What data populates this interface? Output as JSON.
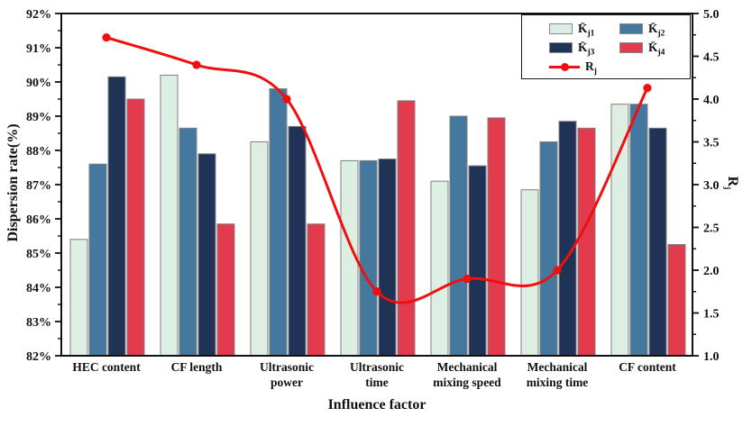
{
  "chart_data": {
    "type": "bar+line",
    "title": "",
    "categories": [
      "HEC content",
      "CF length",
      "Ultrasonic power",
      "Ultrasonic time",
      "Mechanical mixing speed",
      "Mechanical mixing time",
      "CF content"
    ],
    "categories_display": [
      [
        "HEC content"
      ],
      [
        "CF length"
      ],
      [
        "Ultrasonic",
        "power"
      ],
      [
        "Ultrasonic",
        "time"
      ],
      [
        "Mechanical",
        "mixing speed"
      ],
      [
        "Mechanical",
        "mixing time"
      ],
      [
        "CF content"
      ]
    ],
    "bar_series": [
      {
        "name": "K̄j1",
        "color": "#DDEFE3",
        "values": [
          85.4,
          90.2,
          88.25,
          87.7,
          87.1,
          86.85,
          89.35
        ]
      },
      {
        "name": "K̄j2",
        "color": "#45789E",
        "values": [
          87.6,
          88.65,
          89.8,
          87.7,
          89.0,
          88.25,
          89.35
        ]
      },
      {
        "name": "K̄j3",
        "color": "#1E3355",
        "values": [
          90.15,
          87.9,
          88.7,
          87.75,
          87.55,
          88.85,
          88.65
        ]
      },
      {
        "name": "K̄j4",
        "color": "#E23B4E",
        "values": [
          89.5,
          85.85,
          85.85,
          89.45,
          88.95,
          88.65,
          85.25
        ]
      }
    ],
    "line_series": {
      "name": "Rj",
      "color": "#F10E0E",
      "values": [
        4.72,
        4.4,
        4.0,
        1.75,
        1.9,
        2.0,
        4.13
      ]
    },
    "left_axis": {
      "label": "Dispersion rate(%)",
      "min": 82,
      "max": 92,
      "major_step": 1,
      "minor_step": 0.5,
      "tick_labels": [
        "92%",
        "91%",
        "90%",
        "89%",
        "88%",
        "87%",
        "86%",
        "85%",
        "84%",
        "83%",
        "82%"
      ]
    },
    "right_axis": {
      "label_base": "R",
      "label_sub": "j",
      "min": 1.0,
      "max": 5.0,
      "major_step": 0.5,
      "minor_step": 0.25,
      "tick_labels": [
        "5.0",
        "4.5",
        "4.0",
        "3.5",
        "3.0",
        "2.5",
        "2.0",
        "1.5",
        "1.0"
      ]
    },
    "x_axis": {
      "label": "Influence factor"
    },
    "grid": "off",
    "legend_position": "top-right-inside",
    "legend": {
      "entries": [
        {
          "kind": "swatch",
          "color": "#DDEFE3",
          "base": "K̄",
          "sub": "j1"
        },
        {
          "kind": "swatch",
          "color": "#45789E",
          "base": "K̄",
          "sub": "j2"
        },
        {
          "kind": "swatch",
          "color": "#1E3355",
          "base": "K̄",
          "sub": "j3"
        },
        {
          "kind": "swatch",
          "color": "#E23B4E",
          "base": "K̄",
          "sub": "j4"
        },
        {
          "kind": "line",
          "color": "#F10E0E",
          "base": "R",
          "sub": "j"
        }
      ]
    }
  }
}
